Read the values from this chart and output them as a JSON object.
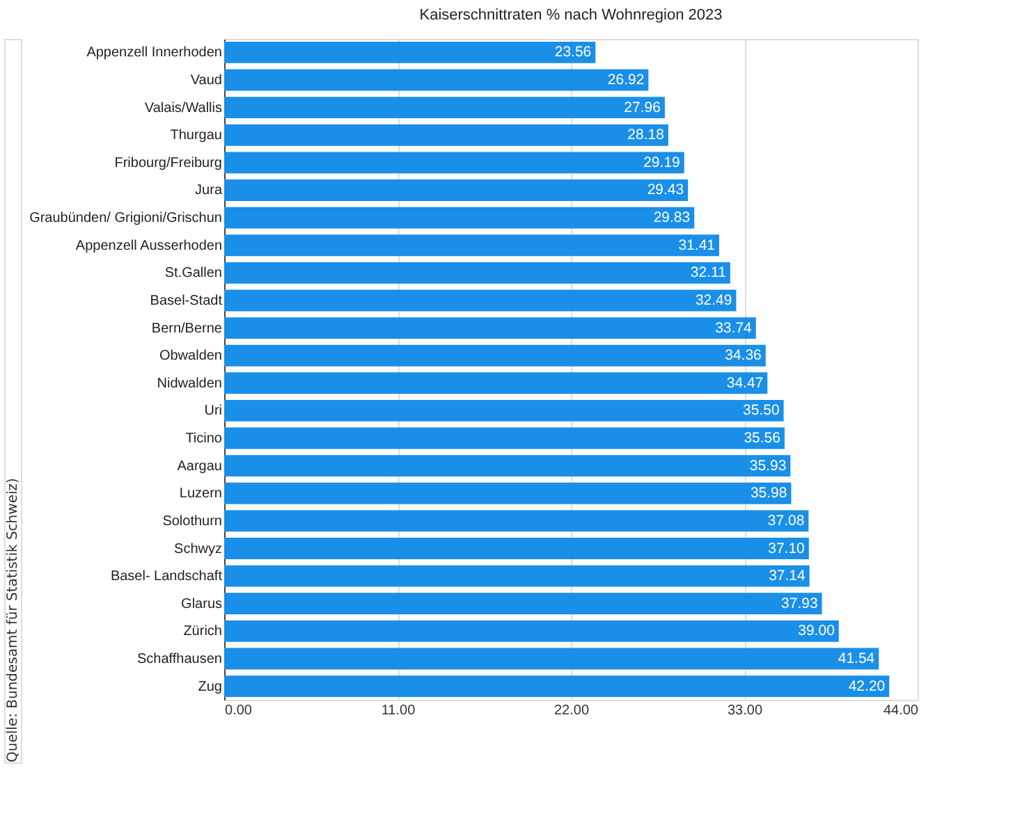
{
  "chart_data": {
    "type": "bar",
    "orientation": "horizontal",
    "title": "Kaiserschnittraten % nach Wohnregion 2023",
    "categories": [
      "Appenzell Innerhoden",
      "Vaud",
      "Valais/Wallis",
      "Thurgau",
      "Fribourg/Freiburg",
      "Jura",
      "Graubünden/ Grigioni/Grischun",
      "Appenzell Ausserhoden",
      "St.Gallen",
      "Basel-Stadt",
      "Bern/Berne",
      "Obwalden",
      "Nidwalden",
      "Uri",
      "Ticino",
      "Aargau",
      "Luzern",
      "Solothurn",
      "Schwyz",
      "Basel- Landschaft",
      "Glarus",
      "Zürich",
      "Schaffhausen",
      "Zug"
    ],
    "values": [
      23.56,
      26.92,
      27.96,
      28.18,
      29.19,
      29.43,
      29.83,
      31.41,
      32.11,
      32.49,
      33.74,
      34.36,
      34.47,
      35.5,
      35.56,
      35.93,
      35.98,
      37.08,
      37.1,
      37.14,
      37.93,
      39.0,
      41.54,
      42.2
    ],
    "value_labels": [
      "23.56",
      "26.92",
      "27.96",
      "28.18",
      "29.19",
      "29.43",
      "29.83",
      "31.41",
      "32.11",
      "32.49",
      "33.74",
      "34.36",
      "34.47",
      "35.50",
      "35.56",
      "35.93",
      "35.98",
      "37.08",
      "37.10",
      "37.14",
      "37.93",
      "39.00",
      "41.54",
      "42.20"
    ],
    "color": "#1a8fe8",
    "xlim": [
      0,
      44
    ],
    "xticks": [
      {
        "value": 0,
        "label": "0.00"
      },
      {
        "value": 11,
        "label": "11.00"
      },
      {
        "value": 22,
        "label": "22.00"
      },
      {
        "value": 33,
        "label": "33.00"
      },
      {
        "value": 44,
        "label": "44.00"
      }
    ],
    "grid": "x",
    "annotations": [
      "Quelle: Bundesamt für Statistik Schweiz)"
    ]
  }
}
